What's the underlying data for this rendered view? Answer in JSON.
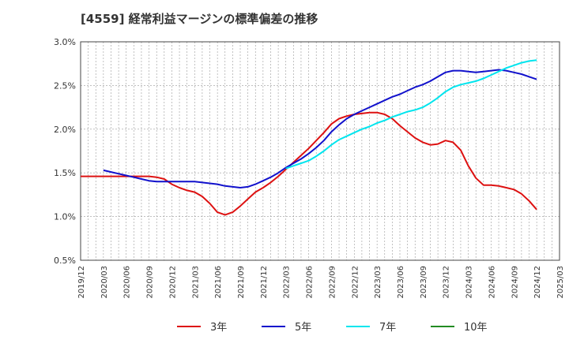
{
  "title": "[4559]  経常利益マージンの標準偏差の推移",
  "chart_data": {
    "type": "line",
    "title": "[4559]  経常利益マージンの標準偏差の推移",
    "xlabel": "",
    "ylabel": "",
    "ylim": [
      0.5,
      3.0
    ],
    "y_ticks": [
      "0.5%",
      "1.0%",
      "1.5%",
      "2.0%",
      "2.5%",
      "3.0%"
    ],
    "x_ticks": [
      "2019/12",
      "2020/03",
      "2020/06",
      "2020/09",
      "2020/12",
      "2021/03",
      "2021/06",
      "2021/09",
      "2021/12",
      "2022/03",
      "2022/06",
      "2022/09",
      "2022/12",
      "2023/03",
      "2023/06",
      "2023/09",
      "2023/12",
      "2024/03",
      "2024/06",
      "2024/09",
      "2024/12",
      "2025/03"
    ],
    "grid": true,
    "legend_position": "bottom",
    "x_start": "2019/12",
    "series": [
      {
        "name": "3年",
        "color": "#dd1111",
        "values": [
          [
            0,
            1.46
          ],
          [
            1,
            1.46
          ],
          [
            2,
            1.46
          ],
          [
            3,
            1.46
          ],
          [
            4,
            1.46
          ],
          [
            5,
            1.46
          ],
          [
            6,
            1.46
          ],
          [
            7,
            1.46
          ],
          [
            8,
            1.46
          ],
          [
            9,
            1.46
          ],
          [
            10,
            1.45
          ],
          [
            11,
            1.43
          ],
          [
            12,
            1.37
          ],
          [
            13,
            1.33
          ],
          [
            14,
            1.3
          ],
          [
            15,
            1.28
          ],
          [
            16,
            1.23
          ],
          [
            17,
            1.15
          ],
          [
            18,
            1.05
          ],
          [
            19,
            1.02
          ],
          [
            20,
            1.05
          ],
          [
            21,
            1.12
          ],
          [
            22,
            1.2
          ],
          [
            23,
            1.28
          ],
          [
            24,
            1.33
          ],
          [
            25,
            1.39
          ],
          [
            26,
            1.46
          ],
          [
            27,
            1.54
          ],
          [
            28,
            1.62
          ],
          [
            29,
            1.7
          ],
          [
            30,
            1.78
          ],
          [
            31,
            1.87
          ],
          [
            32,
            1.96
          ],
          [
            33,
            2.06
          ],
          [
            34,
            2.12
          ],
          [
            35,
            2.15
          ],
          [
            36,
            2.17
          ],
          [
            37,
            2.18
          ],
          [
            38,
            2.19
          ],
          [
            39,
            2.19
          ],
          [
            40,
            2.17
          ],
          [
            41,
            2.12
          ],
          [
            42,
            2.04
          ],
          [
            43,
            1.97
          ],
          [
            44,
            1.9
          ],
          [
            45,
            1.85
          ],
          [
            46,
            1.82
          ],
          [
            47,
            1.83
          ],
          [
            48,
            1.87
          ],
          [
            49,
            1.85
          ],
          [
            50,
            1.76
          ],
          [
            51,
            1.58
          ],
          [
            52,
            1.44
          ],
          [
            53,
            1.36
          ],
          [
            54,
            1.36
          ],
          [
            55,
            1.35
          ],
          [
            56,
            1.33
          ],
          [
            57,
            1.31
          ],
          [
            58,
            1.26
          ],
          [
            59,
            1.18
          ],
          [
            60,
            1.08
          ]
        ]
      },
      {
        "name": "5年",
        "color": "#1111cc",
        "values": [
          [
            3,
            1.53
          ],
          [
            4,
            1.51
          ],
          [
            5,
            1.49
          ],
          [
            6,
            1.47
          ],
          [
            7,
            1.45
          ],
          [
            8,
            1.43
          ],
          [
            9,
            1.41
          ],
          [
            10,
            1.4
          ],
          [
            11,
            1.4
          ],
          [
            12,
            1.4
          ],
          [
            13,
            1.4
          ],
          [
            14,
            1.4
          ],
          [
            15,
            1.4
          ],
          [
            16,
            1.39
          ],
          [
            17,
            1.38
          ],
          [
            18,
            1.37
          ],
          [
            19,
            1.35
          ],
          [
            20,
            1.34
          ],
          [
            21,
            1.33
          ],
          [
            22,
            1.34
          ],
          [
            23,
            1.37
          ],
          [
            24,
            1.41
          ],
          [
            25,
            1.45
          ],
          [
            26,
            1.5
          ],
          [
            27,
            1.56
          ],
          [
            28,
            1.61
          ],
          [
            29,
            1.66
          ],
          [
            30,
            1.72
          ],
          [
            31,
            1.79
          ],
          [
            32,
            1.87
          ],
          [
            33,
            1.97
          ],
          [
            34,
            2.05
          ],
          [
            35,
            2.12
          ],
          [
            36,
            2.17
          ],
          [
            37,
            2.21
          ],
          [
            38,
            2.25
          ],
          [
            39,
            2.29
          ],
          [
            40,
            2.33
          ],
          [
            41,
            2.37
          ],
          [
            42,
            2.4
          ],
          [
            43,
            2.44
          ],
          [
            44,
            2.48
          ],
          [
            45,
            2.51
          ],
          [
            46,
            2.55
          ],
          [
            47,
            2.6
          ],
          [
            48,
            2.65
          ],
          [
            49,
            2.67
          ],
          [
            50,
            2.67
          ],
          [
            51,
            2.66
          ],
          [
            52,
            2.65
          ],
          [
            53,
            2.66
          ],
          [
            54,
            2.67
          ],
          [
            55,
            2.68
          ],
          [
            56,
            2.67
          ],
          [
            57,
            2.65
          ],
          [
            58,
            2.63
          ],
          [
            59,
            2.6
          ],
          [
            60,
            2.57
          ]
        ]
      },
      {
        "name": "7年",
        "color": "#00e5ee",
        "values": [
          [
            27,
            1.55
          ],
          [
            28,
            1.58
          ],
          [
            29,
            1.61
          ],
          [
            30,
            1.64
          ],
          [
            31,
            1.69
          ],
          [
            32,
            1.75
          ],
          [
            33,
            1.82
          ],
          [
            34,
            1.88
          ],
          [
            35,
            1.92
          ],
          [
            36,
            1.96
          ],
          [
            37,
            2.0
          ],
          [
            38,
            2.03
          ],
          [
            39,
            2.07
          ],
          [
            40,
            2.1
          ],
          [
            41,
            2.14
          ],
          [
            42,
            2.17
          ],
          [
            43,
            2.2
          ],
          [
            44,
            2.22
          ],
          [
            45,
            2.25
          ],
          [
            46,
            2.3
          ],
          [
            47,
            2.36
          ],
          [
            48,
            2.43
          ],
          [
            49,
            2.48
          ],
          [
            50,
            2.51
          ],
          [
            51,
            2.53
          ],
          [
            52,
            2.55
          ],
          [
            53,
            2.58
          ],
          [
            54,
            2.62
          ],
          [
            55,
            2.66
          ],
          [
            56,
            2.7
          ],
          [
            57,
            2.73
          ],
          [
            58,
            2.76
          ],
          [
            59,
            2.78
          ],
          [
            60,
            2.79
          ]
        ]
      },
      {
        "name": "10年",
        "color": "#228b22",
        "values": []
      }
    ]
  }
}
